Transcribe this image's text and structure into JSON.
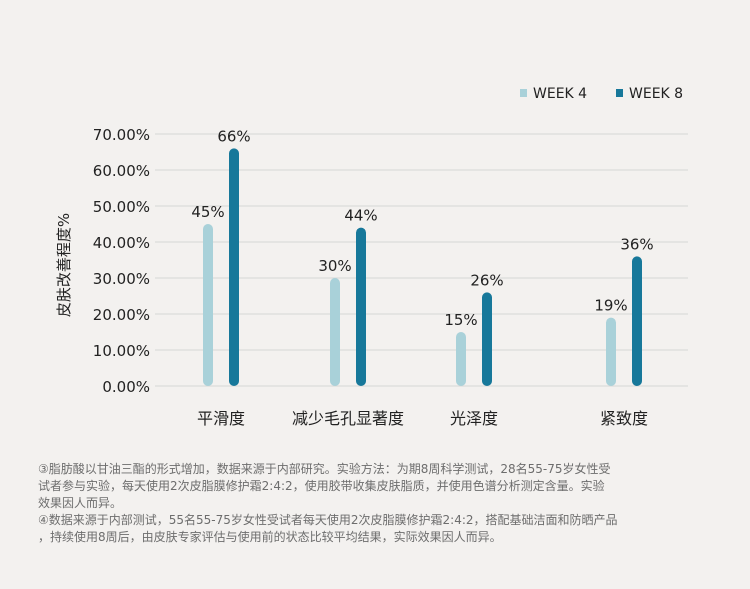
{
  "chart_data": {
    "type": "bar",
    "categories": [
      "平滑度",
      "减少毛孔显著度",
      "光泽度",
      "紧致度"
    ],
    "series": [
      {
        "name": "WEEK 4",
        "values": [
          45,
          30,
          15,
          19
        ],
        "labels": [
          "45%",
          "30%",
          "15%",
          "19%"
        ],
        "color": "#a9d1d9"
      },
      {
        "name": "WEEK 8",
        "values": [
          66,
          44,
          26,
          36
        ],
        "labels": [
          "66%",
          "44%",
          "26%",
          "36%"
        ],
        "color": "#17789a"
      }
    ],
    "ylabel": "皮肤改善程度%",
    "xlabel": "",
    "ylim": [
      0,
      70
    ],
    "yticks": [
      0,
      10,
      20,
      30,
      40,
      50,
      60,
      70
    ],
    "ytick_labels": [
      "0.00%",
      "10.00%",
      "20.00%",
      "30.00%",
      "40.00%",
      "50.00%",
      "60.00%",
      "70.00%"
    ],
    "grid": true,
    "legend": "top-right"
  },
  "notes": [
    "③脂肪酸以甘油三酯的形式增加，数据来源于内部研究。实验方法：为期8周科学测试，28名55-75岁女性受",
    "试者参与实验，每天使用2次皮脂膜修护霜2:4:2，使用胶带收集皮肤脂质，并使用色谱分析测定含量。实验",
    "效果因人而异。",
    "④数据来源于内部测试，55名55-75岁女性受试者每天使用2次皮脂膜修护霜2:4:2，搭配基础洁面和防晒产品",
    "，持续使用8周后，由皮肤专家评估与使用前的状态比较平均结果，实际效果因人而异。"
  ]
}
